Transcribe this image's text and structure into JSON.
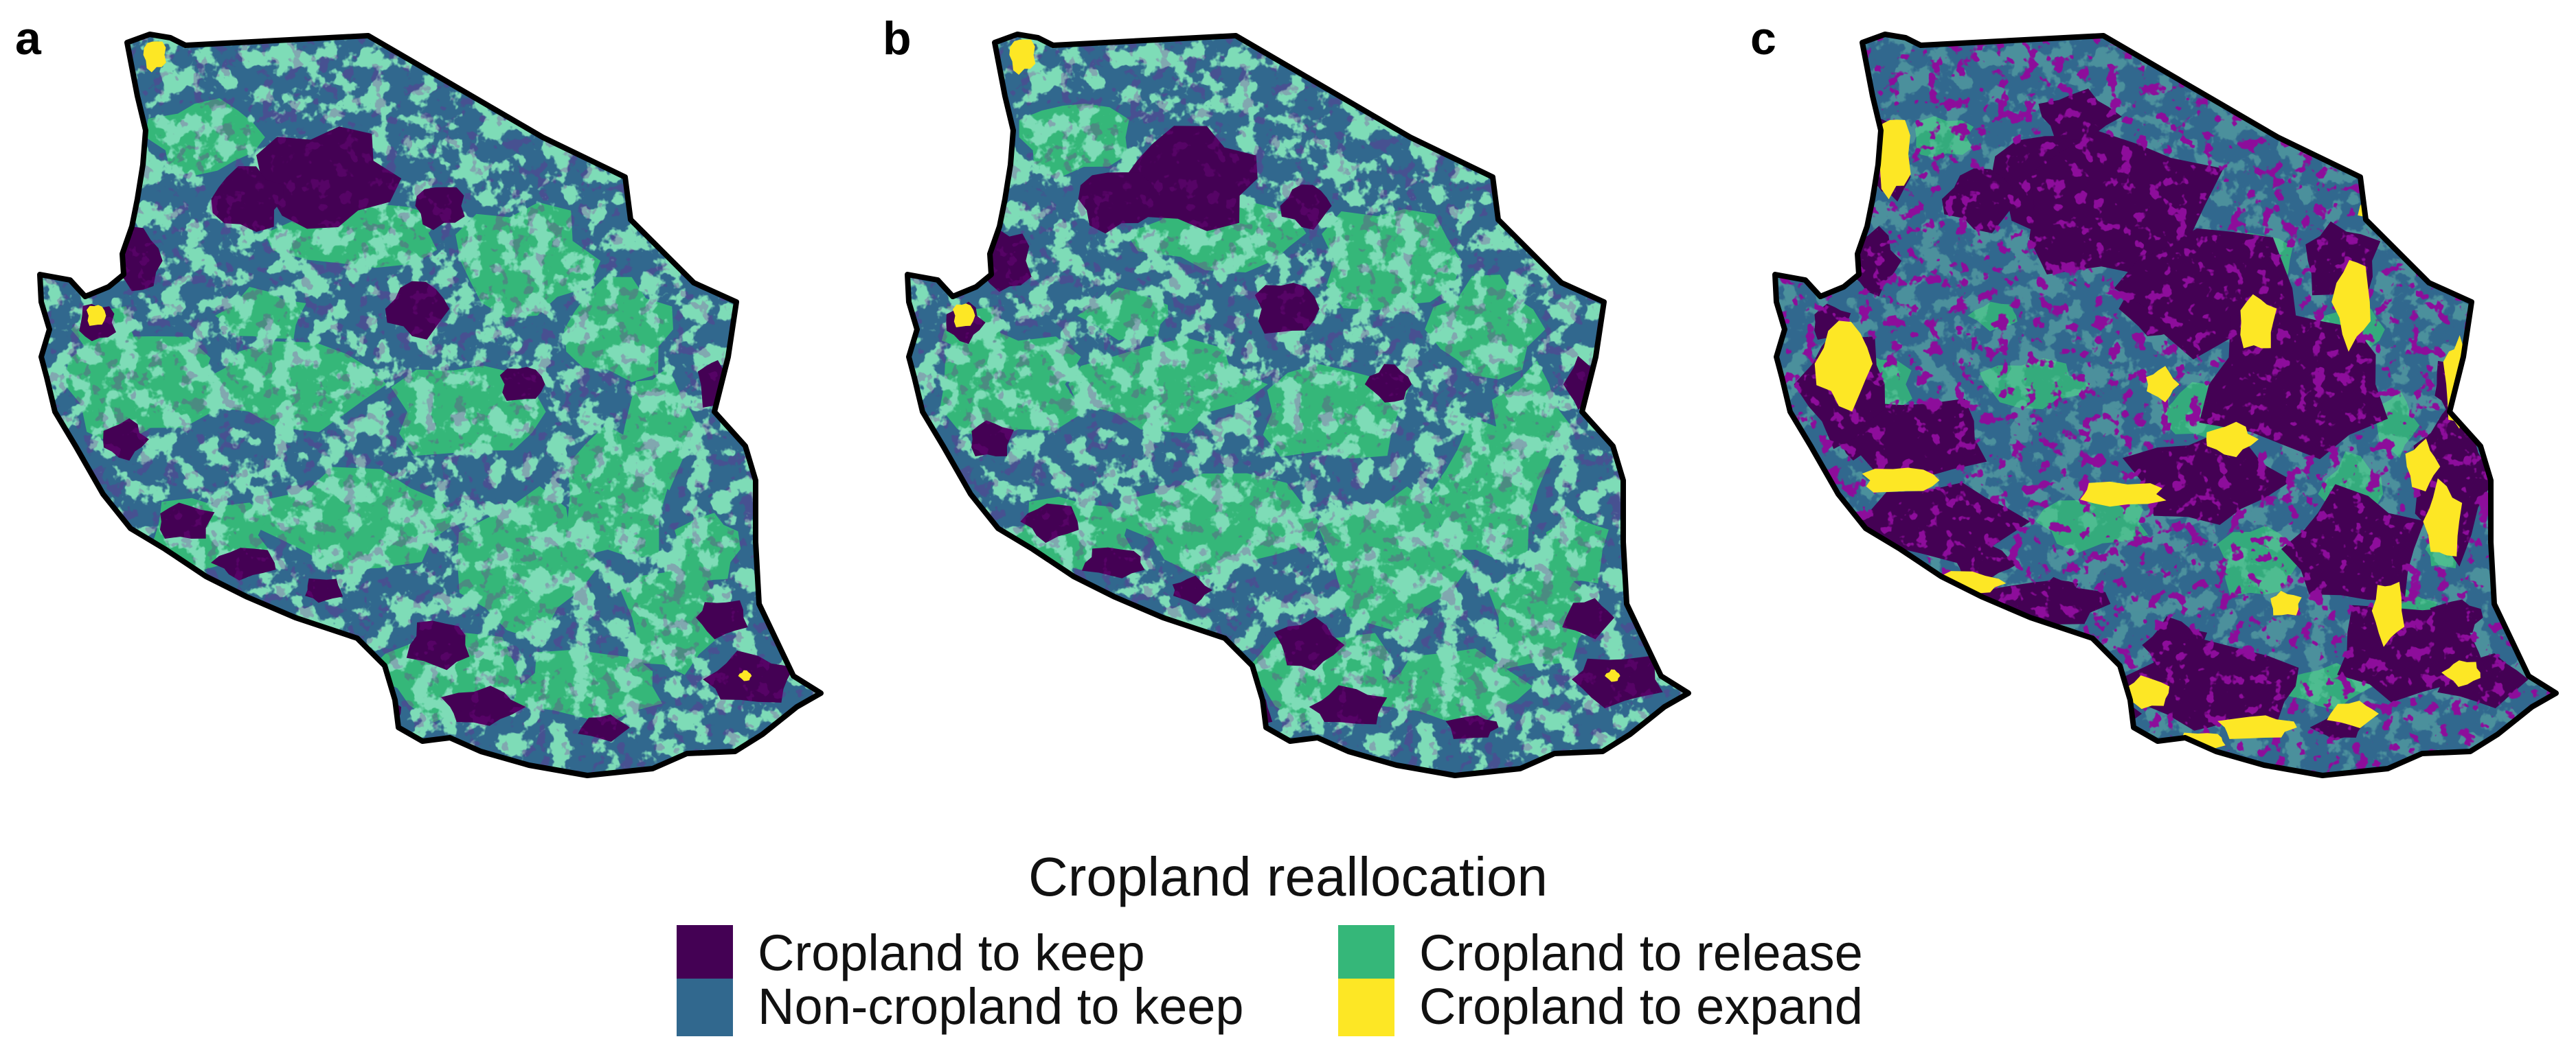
{
  "panels": [
    {
      "label": "a",
      "yellow_level": 0.12
    },
    {
      "label": "b",
      "yellow_level": 0.18
    },
    {
      "label": "c",
      "yellow_level": 1.0
    }
  ],
  "legend": {
    "title": "Cropland reallocation",
    "items": [
      {
        "label": "Cropland to keep",
        "color": "#440154"
      },
      {
        "label": "Non-cropland to keep",
        "color": "#31688e"
      },
      {
        "label": "Cropland to release",
        "color": "#35b779"
      },
      {
        "label": "Cropland to expand",
        "color": "#fde725"
      }
    ]
  },
  "colors": {
    "outline": "#000000",
    "background": "#ffffff"
  }
}
